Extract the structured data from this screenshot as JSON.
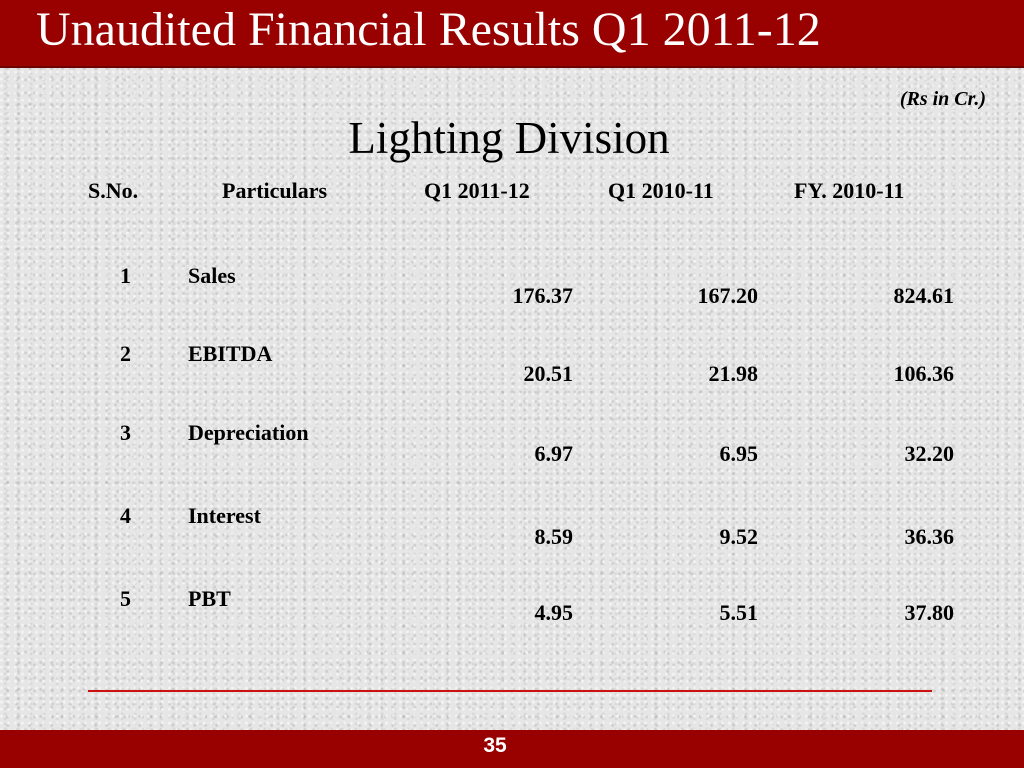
{
  "slide": {
    "title": "Unaudited Financial Results Q1 2011-12",
    "unit_note": "(Rs in Cr.)",
    "division": "Lighting Division",
    "page_number": "35",
    "colors": {
      "accent": "#990000",
      "rule": "#cc1111",
      "background": "#e6e6e6"
    }
  },
  "table": {
    "headers": [
      "S.No.",
      "Particulars",
      "Q1 2011-12",
      "Q1 2010-11",
      "FY. 2010-11"
    ],
    "rows": [
      {
        "sno": "1",
        "particular": "Sales",
        "q1_2011_12": "176.37",
        "q1_2010_11": "167.20",
        "fy_2010_11": "824.61"
      },
      {
        "sno": "2",
        "particular": "EBITDA",
        "q1_2011_12": "20.51",
        "q1_2010_11": "21.98",
        "fy_2010_11": "106.36"
      },
      {
        "sno": "3",
        "particular": "Depreciation",
        "q1_2011_12": "6.97",
        "q1_2010_11": "6.95",
        "fy_2010_11": "32.20"
      },
      {
        "sno": "4",
        "particular": "Interest",
        "q1_2011_12": "8.59",
        "q1_2010_11": "9.52",
        "fy_2010_11": "36.36"
      },
      {
        "sno": "5",
        "particular": "PBT",
        "q1_2011_12": "4.95",
        "q1_2010_11": "5.51",
        "fy_2010_11": "37.80"
      }
    ]
  }
}
